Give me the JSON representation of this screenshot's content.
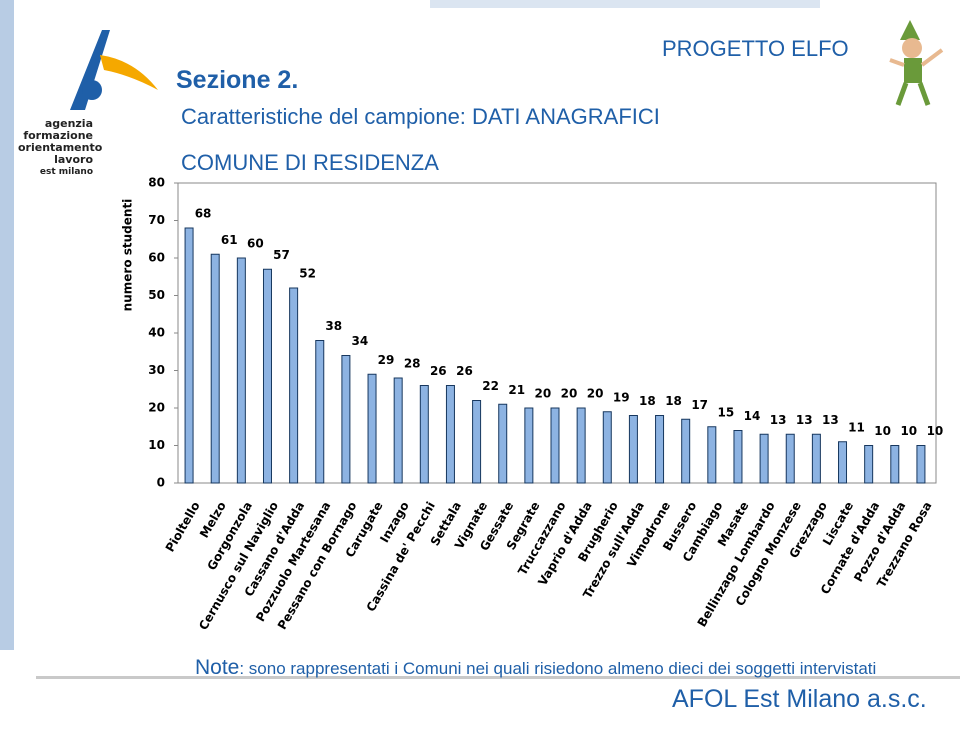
{
  "header": {
    "section": "Sezione 2.",
    "subtitle": "Caratteristiche del campione: DATI ANAGRAFICI",
    "project": "PROGETTO ELFO"
  },
  "logo": {
    "lines": [
      "agenzia",
      "formazione",
      "orientamento",
      "lavoro",
      "est milano"
    ]
  },
  "note": {
    "label": "Note",
    "text": ": sono rappresentati i Comuni nei quali risiedono almeno dieci dei soggetti intervistati"
  },
  "footer": "AFOL Est Milano a.s.c.",
  "chart_data": {
    "type": "bar",
    "title": "COMUNE DI RESIDENZA",
    "y_label": "numero studenti",
    "categories": [
      "Pioltello",
      "Melzo",
      "Gorgonzola",
      "Cernusco sul Naviglio",
      "Cassano d'Adda",
      "Pozzuolo Martesana",
      "Pessano con Bornago",
      "Carugate",
      "Inzago",
      "Cassina de' Pecchi",
      "Settala",
      "Vignate",
      "Gessate",
      "Segrate",
      "Truccazzano",
      "Vaprio d'Adda",
      "Brugherio",
      "Trezzo sull'Adda",
      "Vimodrone",
      "Bussero",
      "Cambiago",
      "Masate",
      "Bellinzago Lombardo",
      "Cologno Monzese",
      "Grezzago",
      "Liscate",
      "Cornate d'Adda",
      "Pozzo d'Adda",
      "Trezzano Rosa"
    ],
    "values": [
      68,
      61,
      60,
      57,
      52,
      38,
      34,
      29,
      28,
      26,
      26,
      22,
      21,
      20,
      20,
      20,
      19,
      18,
      18,
      17,
      15,
      14,
      13,
      13,
      13,
      11,
      10,
      10,
      10
    ],
    "color": "#8db3e2",
    "ylim": [
      0,
      80
    ],
    "yticks": [
      0,
      10,
      20,
      30,
      40,
      50,
      60,
      70,
      80
    ]
  }
}
